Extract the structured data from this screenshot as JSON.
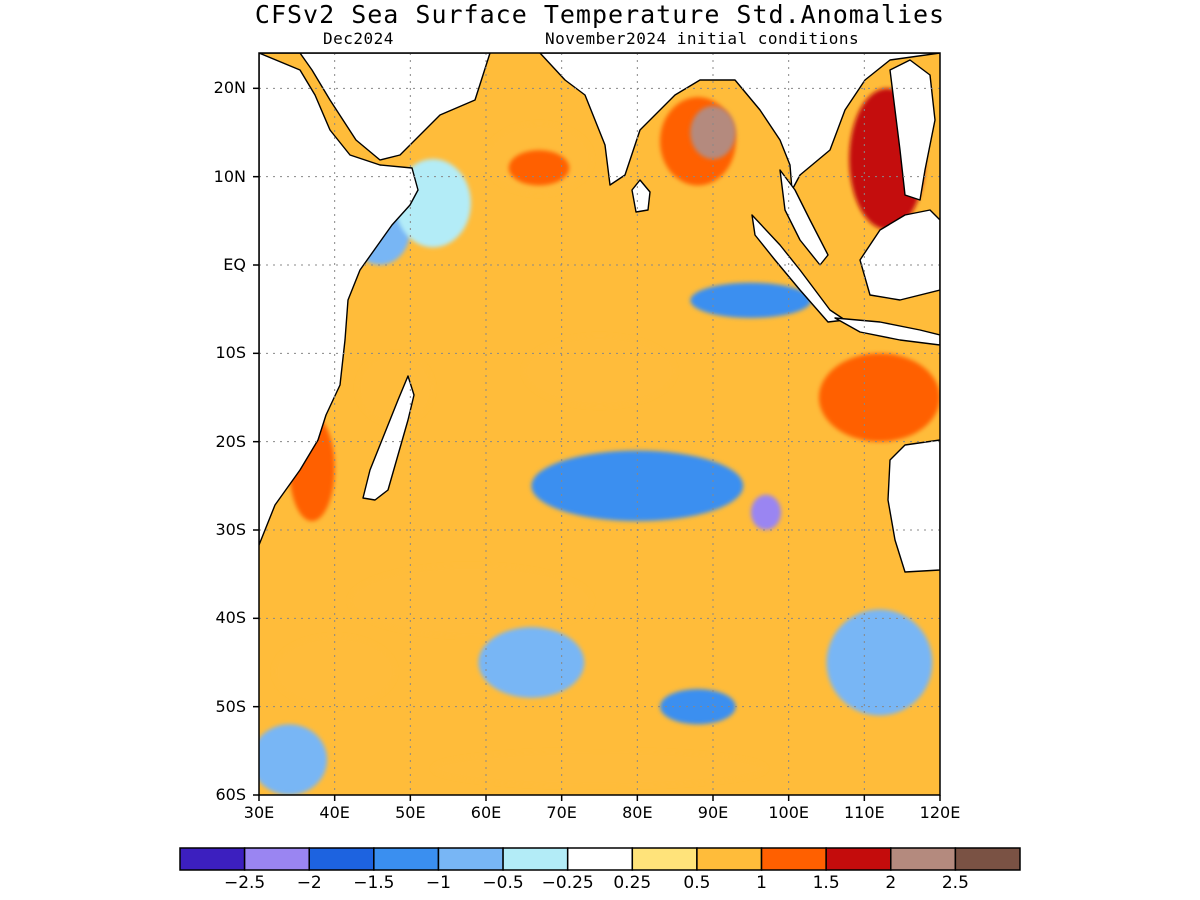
{
  "title": "CFSv2 Sea Surface Temperature Std.Anomalies",
  "subtitle_left": "Dec2024",
  "subtitle_right": "November2024 initial conditions",
  "axes": {
    "lat_ticks": [
      {
        "value": 20,
        "label": "20N"
      },
      {
        "value": 10,
        "label": "10N"
      },
      {
        "value": 0,
        "label": "EQ"
      },
      {
        "value": -10,
        "label": "10S"
      },
      {
        "value": -20,
        "label": "20S"
      },
      {
        "value": -30,
        "label": "30S"
      },
      {
        "value": -40,
        "label": "40S"
      },
      {
        "value": -50,
        "label": "50S"
      },
      {
        "value": -60,
        "label": "60S"
      }
    ],
    "lon_ticks": [
      {
        "value": 30,
        "label": "30E"
      },
      {
        "value": 40,
        "label": "40E"
      },
      {
        "value": 50,
        "label": "50E"
      },
      {
        "value": 60,
        "label": "60E"
      },
      {
        "value": 70,
        "label": "70E"
      },
      {
        "value": 80,
        "label": "80E"
      },
      {
        "value": 90,
        "label": "90E"
      },
      {
        "value": 100,
        "label": "100E"
      },
      {
        "value": 110,
        "label": "110E"
      },
      {
        "value": 120,
        "label": "120E"
      }
    ],
    "lon_range": [
      30,
      120
    ],
    "lat_range": [
      -60,
      24
    ],
    "grid": true
  },
  "colorbar": {
    "colors": [
      "#3c1fbf",
      "#9a85f2",
      "#1d63e0",
      "#3a8ff0",
      "#78b6f5",
      "#b3ecf7",
      "#ffffff",
      "#ffe37a",
      "#ffbc3a",
      "#ff6000",
      "#c40c0c",
      "#b48a7e",
      "#7a5244"
    ],
    "labels": [
      "−2.5",
      "−2",
      "−1.5",
      "−1",
      "−0.5",
      "−0.25",
      "0.25",
      "0.5",
      "1",
      "1.5",
      "2",
      "2.5"
    ]
  },
  "map_regions": [
    {
      "name": "arabian-sea-warm",
      "level": 2,
      "lon": 67,
      "lat": 12,
      "rx": 7,
      "ry": 4
    },
    {
      "name": "arabian-sea-core",
      "level": 3,
      "lon": 67,
      "lat": 11,
      "rx": 4,
      "ry": 2
    },
    {
      "name": "bay-of-bengal-warm",
      "level": 3,
      "lon": 88,
      "lat": 14,
      "rx": 5,
      "ry": 5
    },
    {
      "name": "bay-of-bengal-core",
      "level": 5,
      "lon": 90,
      "lat": 15,
      "rx": 3,
      "ry": 3
    },
    {
      "name": "south-china-sea-warm",
      "level": 4,
      "lon": 113,
      "lat": 12,
      "rx": 5,
      "ry": 8
    },
    {
      "name": "equatorial-cool",
      "level": -3,
      "lon": 95,
      "lat": -4,
      "rx": 8,
      "ry": 2
    },
    {
      "name": "western-eq-cool",
      "level": -2,
      "lon": 46,
      "lat": 4,
      "rx": 4,
      "ry": 4
    },
    {
      "name": "indonesia-warm",
      "level": 3,
      "lon": 112,
      "lat": -15,
      "rx": 8,
      "ry": 5
    },
    {
      "name": "subtropical-cool",
      "level": -3,
      "lon": 80,
      "lat": -25,
      "rx": 14,
      "ry": 4
    },
    {
      "name": "subtropical-cool-core",
      "level": -5,
      "lon": 97,
      "lat": -28,
      "rx": 2,
      "ry": 2
    },
    {
      "name": "south-warm-band",
      "level": 2,
      "lon": 58,
      "lat": -38,
      "rx": 16,
      "ry": 4
    },
    {
      "name": "south-warm-band-2",
      "level": 2,
      "lon": 40,
      "lat": -46,
      "rx": 8,
      "ry": 4
    },
    {
      "name": "southern-cool",
      "level": -2,
      "lon": 66,
      "lat": -45,
      "rx": 7,
      "ry": 4
    },
    {
      "name": "far-south-cool",
      "level": -2,
      "lon": 112,
      "lat": -45,
      "rx": 7,
      "ry": 6
    },
    {
      "name": "near-50s-cool",
      "level": -3,
      "lon": 88,
      "lat": -50,
      "rx": 5,
      "ry": 2
    },
    {
      "name": "madagascar-west-warm",
      "level": 3,
      "lon": 37,
      "lat": -23,
      "rx": 3,
      "ry": 6
    },
    {
      "name": "somali-cool",
      "level": -1,
      "lon": 53,
      "lat": 7,
      "rx": 5,
      "ry": 5
    },
    {
      "name": "central-warm",
      "level": 2,
      "lon": 75,
      "lat": -12,
      "rx": 10,
      "ry": 4
    },
    {
      "name": "west-10s-warm",
      "level": 2,
      "lon": 48,
      "lat": -14,
      "rx": 5,
      "ry": 4
    },
    {
      "name": "southwest-cool",
      "level": -2,
      "lon": 34,
      "lat": -56,
      "rx": 5,
      "ry": 4
    },
    {
      "name": "south-60-warm",
      "level": 2,
      "lon": 75,
      "lat": -57,
      "rx": 22,
      "ry": 2
    }
  ]
}
